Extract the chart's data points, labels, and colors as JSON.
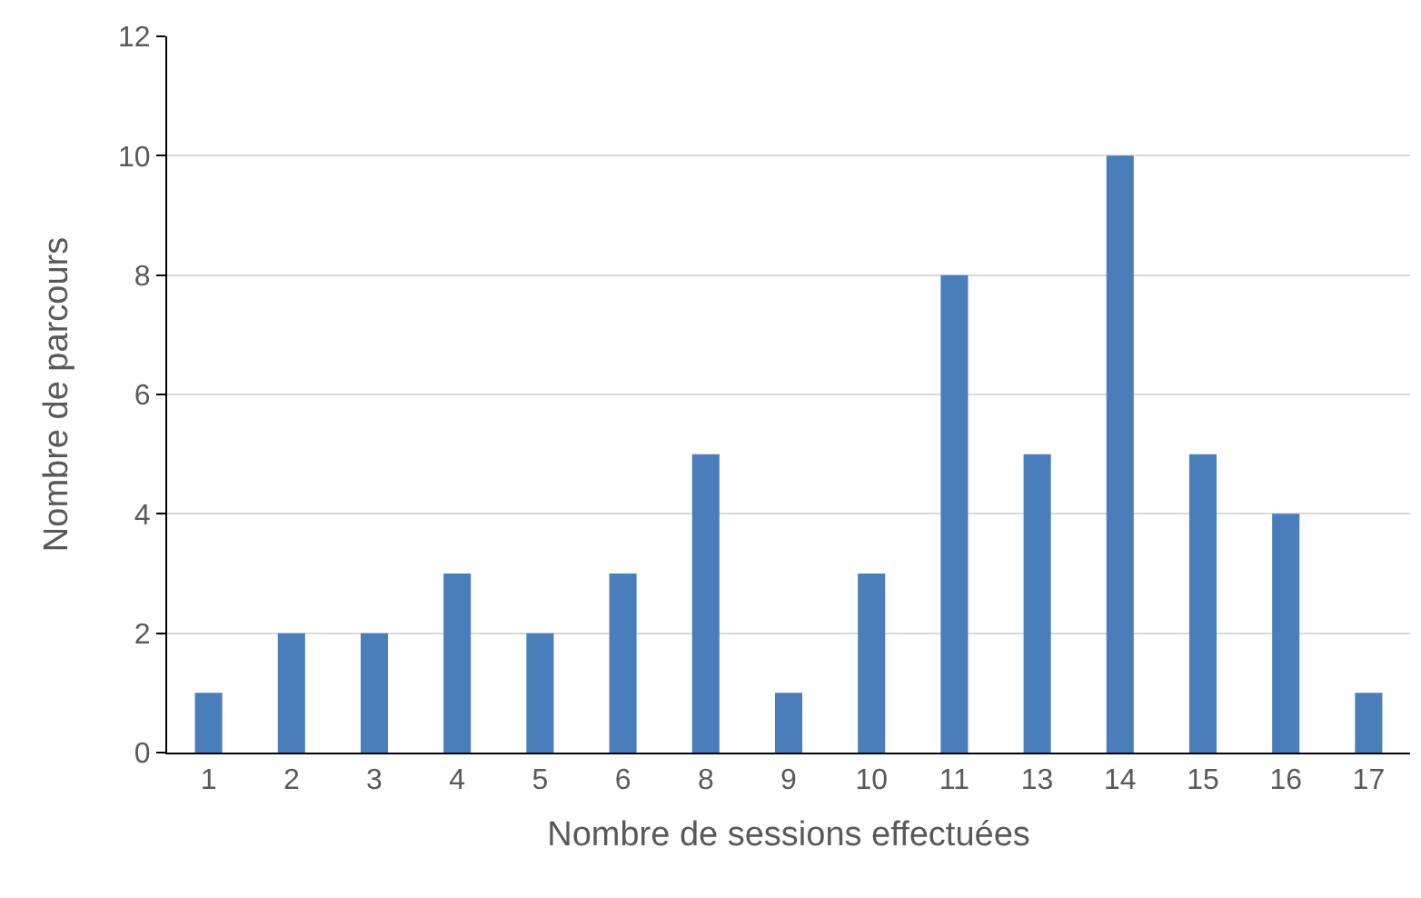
{
  "chart_data": {
    "type": "bar",
    "xlabel": "Nombre de sessions effectuées",
    "ylabel": "Nombre de parcours",
    "categories": [
      "1",
      "2",
      "3",
      "4",
      "5",
      "6",
      "8",
      "9",
      "10",
      "11",
      "13",
      "14",
      "15",
      "16",
      "17"
    ],
    "values": [
      1,
      2,
      2,
      3,
      2,
      3,
      5,
      1,
      3,
      8,
      5,
      10,
      5,
      4,
      1
    ],
    "color": "#4a7ebb",
    "ylim": [
      0,
      12
    ],
    "yticks": [
      0,
      2,
      4,
      6,
      8,
      10,
      12
    ],
    "grid": "y"
  }
}
